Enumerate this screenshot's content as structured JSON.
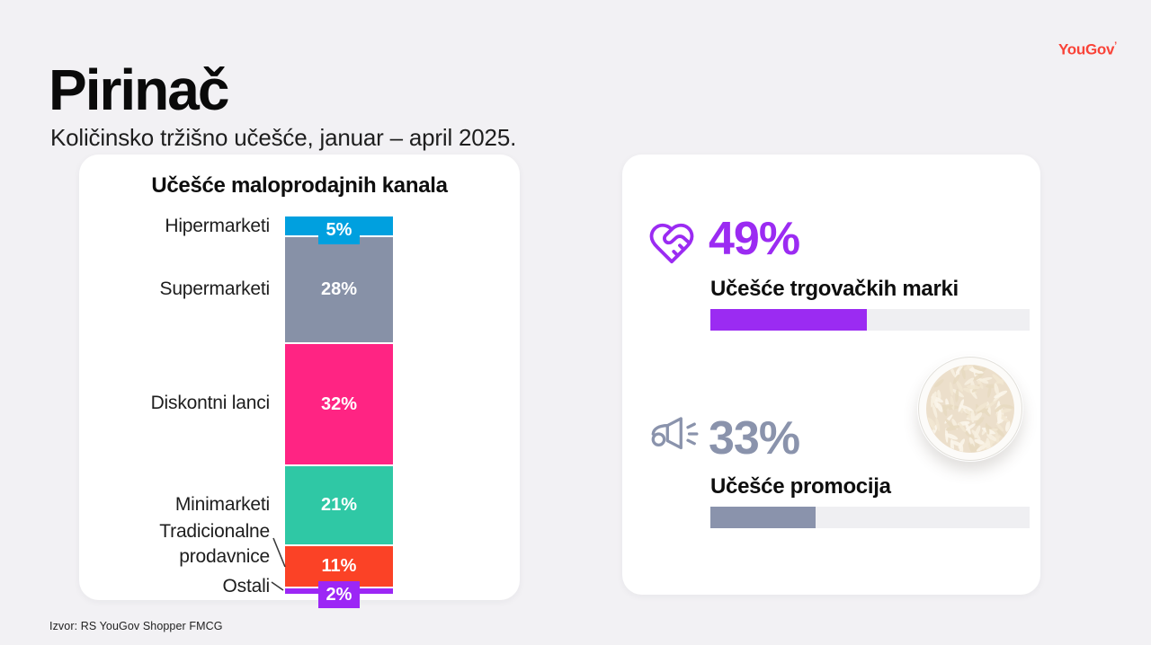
{
  "page": {
    "title": "Pirinač",
    "subtitle": "Količinsko tržišno učešće, januar – april 2025.",
    "logo": "YouGov",
    "logo_mark": "’",
    "source": "Izvor: RS YouGov Shopper FMCG",
    "background_color": "#F2F1F4",
    "card_color": "#FFFFFF",
    "brand_red": "#F94338"
  },
  "chart_data": [
    {
      "type": "bar",
      "variant": "stacked-column",
      "title": "Učešće maloprodajnih kanala",
      "categories": [
        "Hipermarketi",
        "Supermarketi",
        "Diskontni lanci",
        "Minimarketi",
        "Tradicionalne prodavnice",
        "Ostali"
      ],
      "values": [
        5,
        28,
        32,
        21,
        11,
        2
      ],
      "value_labels": [
        "5%",
        "28%",
        "32%",
        "21%",
        "11%",
        "2%"
      ],
      "unit": "%",
      "colors": [
        "#00A0DF",
        "#8791A7",
        "#FF2483",
        "#2FC8A5",
        "#FB4226",
        "#9C27F5"
      ],
      "legend": "none",
      "axes": "none"
    },
    {
      "type": "bar",
      "variant": "kpi-progress",
      "items": [
        {
          "display": "49%",
          "value": 49,
          "label": "Učešće trgovačkih marki",
          "color": "#9B2BF2",
          "track_color": "#EFEFF2",
          "icon": "heart-handshake-icon"
        },
        {
          "display": "33%",
          "value": 33,
          "label": "Učešće promocija",
          "color": "#8A93AC",
          "track_color": "#EFEFF2",
          "icon": "megaphone-icon"
        }
      ]
    }
  ]
}
